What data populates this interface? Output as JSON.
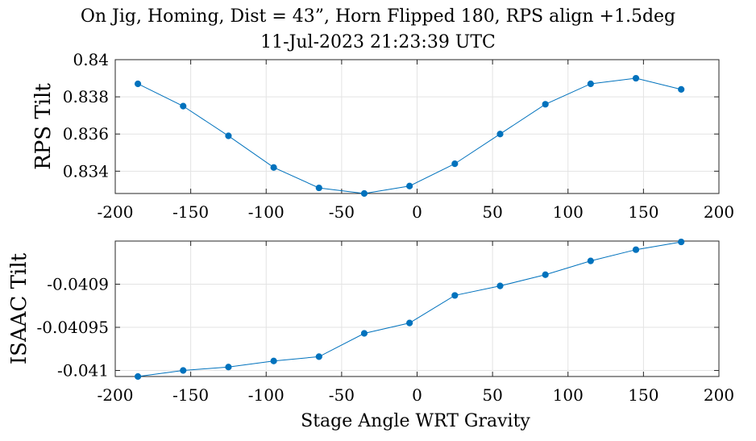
{
  "title": "On Jig, Homing, Dist = 43”, Horn Flipped 180, RPS align +1.5deg",
  "subtitle": "11-Jul-2023 21:23:39 UTC",
  "chart_data": [
    {
      "type": "line",
      "ylabel": "RPS Tilt",
      "xlabel": "",
      "xlim": [
        -200,
        200
      ],
      "ylim": [
        0.8328,
        0.84
      ],
      "xticks": [
        -200,
        -150,
        -100,
        -50,
        0,
        50,
        100,
        150,
        200
      ],
      "xtick_labels": [
        "-200",
        "-150",
        "-100",
        "-50",
        "0",
        "50",
        "100",
        "150",
        "200"
      ],
      "yticks": [
        0.834,
        0.836,
        0.838,
        0.84
      ],
      "ytick_labels": [
        "0.834",
        "0.836",
        "0.838",
        "0.84"
      ],
      "grid": true,
      "color": "#0072BD",
      "x": [
        -185,
        -155,
        -125,
        -95,
        -65,
        -35,
        -5,
        25,
        55,
        85,
        115,
        145,
        175
      ],
      "y": [
        0.8387,
        0.8375,
        0.8359,
        0.8342,
        0.8331,
        0.8328,
        0.8332,
        0.8344,
        0.836,
        0.8376,
        0.8387,
        0.839,
        0.8384
      ]
    },
    {
      "type": "line",
      "ylabel": "ISAAC Tilt",
      "xlabel": "Stage Angle WRT Gravity",
      "xlim": [
        -200,
        200
      ],
      "ylim": [
        -0.041007,
        -0.04085
      ],
      "xticks": [
        -200,
        -150,
        -100,
        -50,
        0,
        50,
        100,
        150,
        200
      ],
      "xtick_labels": [
        "-200",
        "-150",
        "-100",
        "-50",
        "0",
        "50",
        "100",
        "150",
        "200"
      ],
      "yticks": [
        -0.041,
        -0.04095,
        -0.0409
      ],
      "ytick_labels": [
        "-0.041",
        "-0.04095",
        "-0.0409"
      ],
      "grid": true,
      "color": "#0072BD",
      "x": [
        -185,
        -155,
        -125,
        -95,
        -65,
        -35,
        -5,
        25,
        55,
        85,
        115,
        145,
        175
      ],
      "y": [
        -0.041007,
        -0.041,
        -0.040996,
        -0.040989,
        -0.040984,
        -0.040957,
        -0.040945,
        -0.040913,
        -0.040902,
        -0.040889,
        -0.040873,
        -0.04086,
        -0.040851
      ]
    }
  ]
}
